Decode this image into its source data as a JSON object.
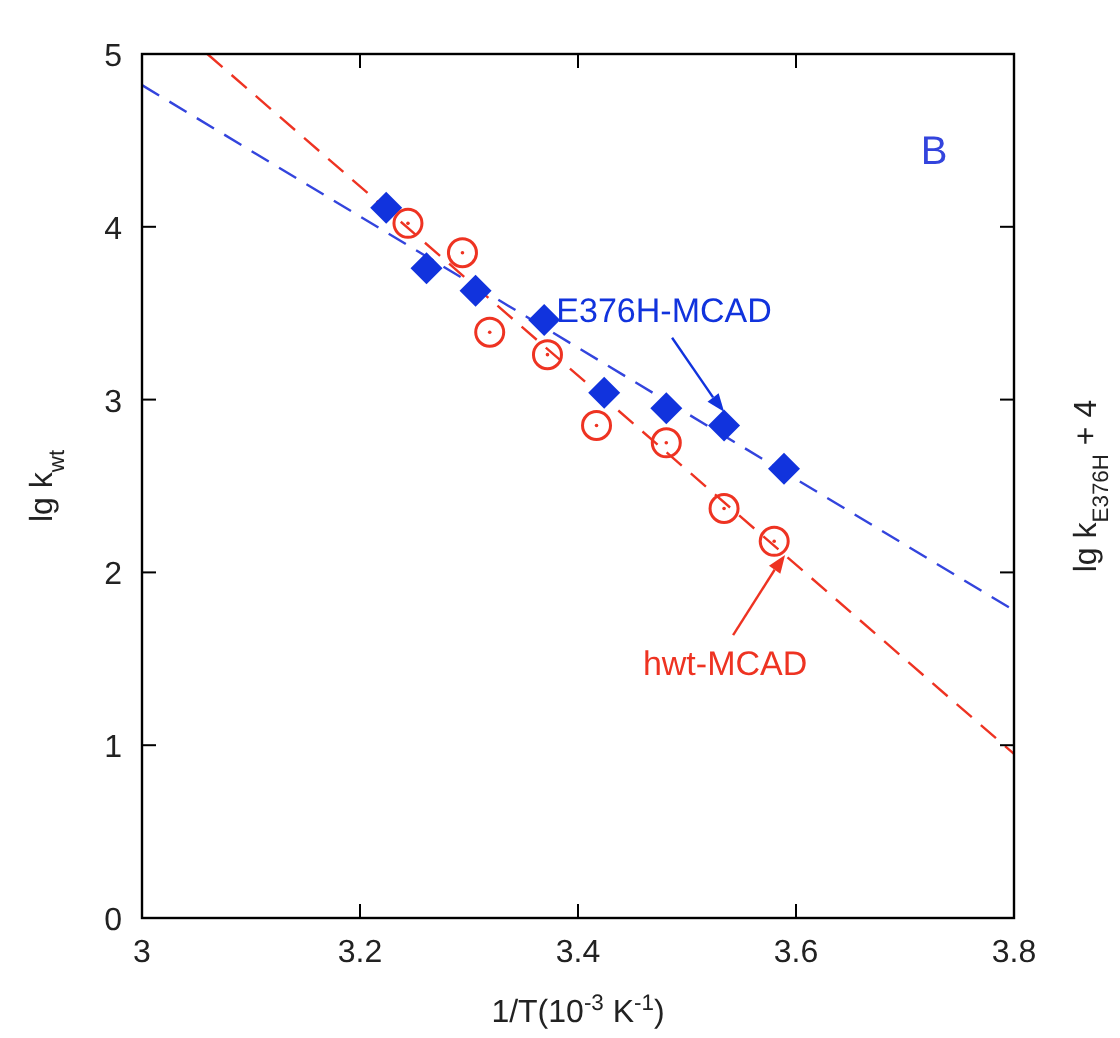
{
  "chart_data": {
    "type": "scatter",
    "xlabel": "1/T(10$^{-3}$ K$^{-1}$)",
    "ylabel": "lg k$_{wt}$",
    "y2label": "lg k$_{E376H}$ + 4",
    "xlim": [
      3,
      3.8
    ],
    "xticks": [
      3,
      3.2,
      3.4,
      3.6,
      3.8
    ],
    "ylim": [
      0,
      5
    ],
    "yticks": [
      0,
      1,
      2,
      3,
      4,
      5
    ],
    "grid": false,
    "series": [
      {
        "type": "line",
        "color": "#3344dd",
        "x": [
          3,
          3.8
        ],
        "values": [
          4.82,
          1.78
        ],
        "line_style": "dashed",
        "marker": "none"
      },
      {
        "type": "line",
        "color": "#ee3322",
        "x": [
          3.06,
          3.8
        ],
        "values": [
          5,
          0.95
        ],
        "line_style": "dashed",
        "marker": "none"
      },
      {
        "type": "scatter",
        "color": "#1133dd",
        "marker": "diamond",
        "x": [
          3.224,
          3.261,
          3.306,
          3.369,
          3.424,
          3.481,
          3.534,
          3.589
        ],
        "values": [
          4.11,
          3.76,
          3.63,
          3.46,
          3.04,
          2.95,
          2.85,
          2.6
        ]
      },
      {
        "type": "scatter",
        "color": "#ee3322",
        "marker": "circle",
        "x": [
          3.244,
          3.294,
          3.319,
          3.372,
          3.417,
          3.481,
          3.534,
          3.58
        ],
        "values": [
          4.02,
          3.85,
          3.39,
          3.26,
          2.85,
          2.75,
          2.37,
          2.18
        ]
      }
    ],
    "annotations": [
      "B",
      {
        "text": "E376H-MCAD",
        "x": 3.534,
        "y": 2.93
      },
      {
        "text": "hwt-MCAD",
        "x": 3.59,
        "y": 2.1
      }
    ]
  }
}
